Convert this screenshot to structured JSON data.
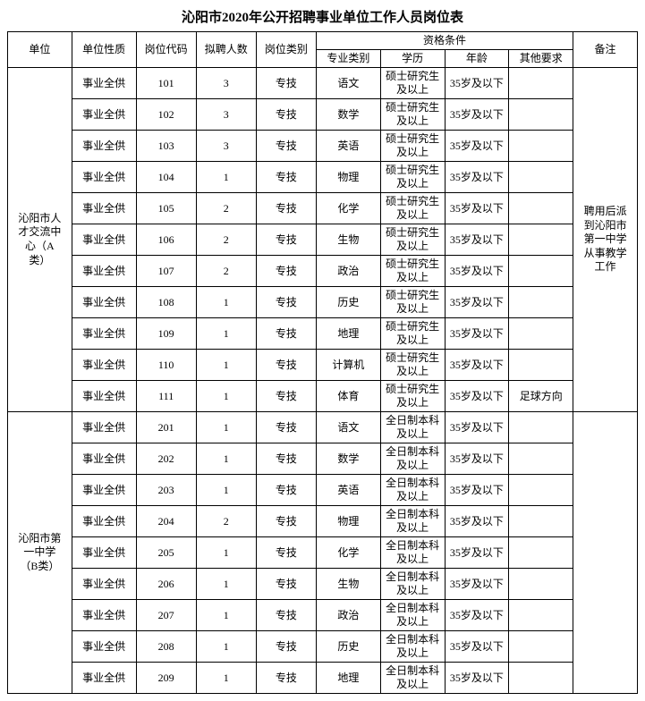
{
  "title": "沁阳市2020年公开招聘事业单位工作人员岗位表",
  "headers": {
    "unit": "单位",
    "nature": "单位性质",
    "code": "岗位代码",
    "count": "拟聘人数",
    "category": "岗位类别",
    "qualification": "资格条件",
    "major": "专业类别",
    "edu": "学历",
    "age": "年龄",
    "other": "其他要求",
    "remark": "备注"
  },
  "groups": [
    {
      "unit": "沁阳市人才交流中心（A类）",
      "remark": "聘用后派到沁阳市第一中学从事教学工作",
      "rows": [
        {
          "nature": "事业全供",
          "code": "101",
          "count": "3",
          "category": "专技",
          "major": "语文",
          "edu": "硕士研究生及以上",
          "age": "35岁及以下",
          "other": ""
        },
        {
          "nature": "事业全供",
          "code": "102",
          "count": "3",
          "category": "专技",
          "major": "数学",
          "edu": "硕士研究生及以上",
          "age": "35岁及以下",
          "other": ""
        },
        {
          "nature": "事业全供",
          "code": "103",
          "count": "3",
          "category": "专技",
          "major": "英语",
          "edu": "硕士研究生及以上",
          "age": "35岁及以下",
          "other": ""
        },
        {
          "nature": "事业全供",
          "code": "104",
          "count": "1",
          "category": "专技",
          "major": "物理",
          "edu": "硕士研究生及以上",
          "age": "35岁及以下",
          "other": ""
        },
        {
          "nature": "事业全供",
          "code": "105",
          "count": "2",
          "category": "专技",
          "major": "化学",
          "edu": "硕士研究生及以上",
          "age": "35岁及以下",
          "other": ""
        },
        {
          "nature": "事业全供",
          "code": "106",
          "count": "2",
          "category": "专技",
          "major": "生物",
          "edu": "硕士研究生及以上",
          "age": "35岁及以下",
          "other": ""
        },
        {
          "nature": "事业全供",
          "code": "107",
          "count": "2",
          "category": "专技",
          "major": "政治",
          "edu": "硕士研究生及以上",
          "age": "35岁及以下",
          "other": ""
        },
        {
          "nature": "事业全供",
          "code": "108",
          "count": "1",
          "category": "专技",
          "major": "历史",
          "edu": "硕士研究生及以上",
          "age": "35岁及以下",
          "other": ""
        },
        {
          "nature": "事业全供",
          "code": "109",
          "count": "1",
          "category": "专技",
          "major": "地理",
          "edu": "硕士研究生及以上",
          "age": "35岁及以下",
          "other": ""
        },
        {
          "nature": "事业全供",
          "code": "110",
          "count": "1",
          "category": "专技",
          "major": "计算机",
          "edu": "硕士研究生及以上",
          "age": "35岁及以下",
          "other": ""
        },
        {
          "nature": "事业全供",
          "code": "111",
          "count": "1",
          "category": "专技",
          "major": "体育",
          "edu": "硕士研究生及以上",
          "age": "35岁及以下",
          "other": "足球方向"
        }
      ]
    },
    {
      "unit": "沁阳市第一中学（B类）",
      "remark": "",
      "rows": [
        {
          "nature": "事业全供",
          "code": "201",
          "count": "1",
          "category": "专技",
          "major": "语文",
          "edu": "全日制本科及以上",
          "age": "35岁及以下",
          "other": ""
        },
        {
          "nature": "事业全供",
          "code": "202",
          "count": "1",
          "category": "专技",
          "major": "数学",
          "edu": "全日制本科及以上",
          "age": "35岁及以下",
          "other": ""
        },
        {
          "nature": "事业全供",
          "code": "203",
          "count": "1",
          "category": "专技",
          "major": "英语",
          "edu": "全日制本科及以上",
          "age": "35岁及以下",
          "other": ""
        },
        {
          "nature": "事业全供",
          "code": "204",
          "count": "2",
          "category": "专技",
          "major": "物理",
          "edu": "全日制本科及以上",
          "age": "35岁及以下",
          "other": ""
        },
        {
          "nature": "事业全供",
          "code": "205",
          "count": "1",
          "category": "专技",
          "major": "化学",
          "edu": "全日制本科及以上",
          "age": "35岁及以下",
          "other": ""
        },
        {
          "nature": "事业全供",
          "code": "206",
          "count": "1",
          "category": "专技",
          "major": "生物",
          "edu": "全日制本科及以上",
          "age": "35岁及以下",
          "other": ""
        },
        {
          "nature": "事业全供",
          "code": "207",
          "count": "1",
          "category": "专技",
          "major": "政治",
          "edu": "全日制本科及以上",
          "age": "35岁及以下",
          "other": ""
        },
        {
          "nature": "事业全供",
          "code": "208",
          "count": "1",
          "category": "专技",
          "major": "历史",
          "edu": "全日制本科及以上",
          "age": "35岁及以下",
          "other": ""
        },
        {
          "nature": "事业全供",
          "code": "209",
          "count": "1",
          "category": "专技",
          "major": "地理",
          "edu": "全日制本科及以上",
          "age": "35岁及以下",
          "other": ""
        }
      ]
    }
  ]
}
